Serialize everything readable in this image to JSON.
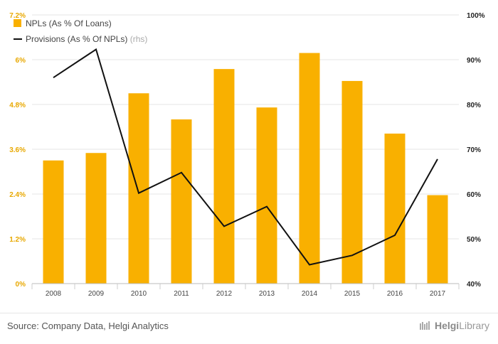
{
  "chart_data": {
    "type": "bar",
    "categories": [
      "2008",
      "2009",
      "2010",
      "2011",
      "2012",
      "2013",
      "2014",
      "2015",
      "2016",
      "2017"
    ],
    "series": [
      {
        "name": "NPLs (As % Of Loans)",
        "kind": "bar",
        "axis": "left",
        "color": "#f9b000",
        "values": [
          3.3,
          3.5,
          5.1,
          4.4,
          5.75,
          4.72,
          6.18,
          5.43,
          4.02,
          2.37
        ]
      },
      {
        "name": "Provisions (As % Of NPLs)",
        "name_suffix": "(rhs)",
        "kind": "line",
        "axis": "right",
        "color": "#111111",
        "values": [
          86,
          92.3,
          60.2,
          64.8,
          52.8,
          57.2,
          44.2,
          46.3,
          50.8,
          67.8
        ]
      }
    ],
    "y_left": {
      "ticks": [
        "0%",
        "1.2%",
        "2.4%",
        "3.6%",
        "4.8%",
        "6%",
        "7.2%"
      ],
      "ylim": [
        0,
        7.2
      ],
      "color": "#e8a800"
    },
    "y_right": {
      "ticks": [
        "40%",
        "50%",
        "60%",
        "70%",
        "80%",
        "90%",
        "100%"
      ],
      "ylim": [
        40,
        100
      ],
      "color": "#222222"
    },
    "grid": true,
    "legend_position": "top-left"
  },
  "footer": {
    "source": "Source: Company Data, Helgi Analytics",
    "brand_prefix": "Helgi",
    "brand_suffix": "Library"
  }
}
